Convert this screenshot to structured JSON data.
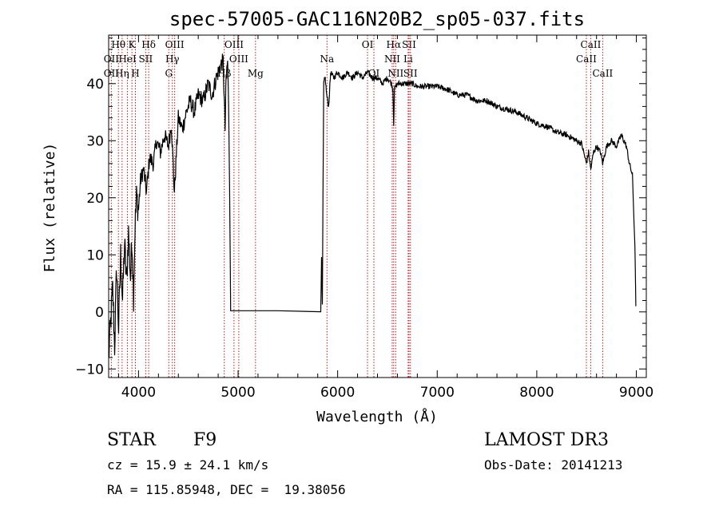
{
  "title": "spec-57005-GAC116N20B2_sp05-037.fits",
  "info": {
    "object_class": "STAR",
    "subclass": "F9",
    "survey": "LAMOST DR3",
    "cz": "cz = 15.9 ± 24.1 km/s",
    "obs_date": "Obs-Date: 20141213",
    "radec": "RA = 115.85948, DEC =  19.38056"
  },
  "chart_data": {
    "type": "line",
    "title": "spec-57005-GAC116N20B2_sp05-037.fits",
    "xlabel": "Wavelength (Å)",
    "ylabel": "Flux (relative)",
    "xlim": [
      3700,
      9100
    ],
    "ylim": [
      -11.5,
      48.5
    ],
    "x_ticks": [
      4000,
      5000,
      6000,
      7000,
      8000,
      9000
    ],
    "y_ticks": [
      -10,
      0,
      10,
      20,
      30,
      40
    ],
    "x_minor_step": 200,
    "y_minor_step": 2,
    "grid": false,
    "colors": {
      "spectrum": "#000000",
      "line_markers": "#b22222"
    },
    "series": [
      {
        "values_xy": [
          [
            3700,
            -8
          ],
          [
            3720,
            -2
          ],
          [
            3740,
            4
          ],
          [
            3760,
            -6
          ],
          [
            3780,
            8
          ],
          [
            3800,
            -3
          ],
          [
            3820,
            10
          ],
          [
            3840,
            2
          ],
          [
            3860,
            12
          ],
          [
            3880,
            5
          ],
          [
            3900,
            14
          ],
          [
            3920,
            6
          ],
          [
            3935,
            13
          ],
          [
            3950,
            3
          ],
          [
            3965,
            15
          ],
          [
            3980,
            20
          ],
          [
            4000,
            18
          ],
          [
            4020,
            23
          ],
          [
            4050,
            25
          ],
          [
            4080,
            21
          ],
          [
            4110,
            27
          ],
          [
            4150,
            26
          ],
          [
            4180,
            30
          ],
          [
            4220,
            28
          ],
          [
            4260,
            31
          ],
          [
            4300,
            29
          ],
          [
            4330,
            33
          ],
          [
            4360,
            21
          ],
          [
            4400,
            34
          ],
          [
            4440,
            32
          ],
          [
            4480,
            35
          ],
          [
            4520,
            37
          ],
          [
            4560,
            35
          ],
          [
            4600,
            38
          ],
          [
            4650,
            37
          ],
          [
            4700,
            40
          ],
          [
            4740,
            38
          ],
          [
            4780,
            41
          ],
          [
            4820,
            43
          ],
          [
            4850,
            44
          ],
          [
            4870,
            32
          ],
          [
            4880,
            41
          ],
          [
            4895,
            44
          ],
          [
            4905,
            36
          ],
          [
            4915,
            22
          ],
          [
            4925,
            0.2
          ],
          [
            5400,
            0.2
          ],
          [
            5830,
            0.2
          ],
          [
            5838,
            10
          ],
          [
            5846,
            1
          ],
          [
            5860,
            40
          ],
          [
            5875,
            41
          ],
          [
            5890,
            38
          ],
          [
            5910,
            36
          ],
          [
            5930,
            42
          ],
          [
            5960,
            41
          ],
          [
            6000,
            42
          ],
          [
            6050,
            41
          ],
          [
            6100,
            42
          ],
          [
            6150,
            41
          ],
          [
            6200,
            42
          ],
          [
            6250,
            41
          ],
          [
            6300,
            42
          ],
          [
            6350,
            41
          ],
          [
            6400,
            41
          ],
          [
            6450,
            40
          ],
          [
            6500,
            41
          ],
          [
            6540,
            40
          ],
          [
            6555,
            39
          ],
          [
            6563,
            33
          ],
          [
            6570,
            39
          ],
          [
            6600,
            40
          ],
          [
            6650,
            40
          ],
          [
            6700,
            40
          ],
          [
            6750,
            40
          ],
          [
            6800,
            39.5
          ],
          [
            6900,
            39.5
          ],
          [
            7000,
            39.5
          ],
          [
            7100,
            39
          ],
          [
            7200,
            38
          ],
          [
            7300,
            38
          ],
          [
            7400,
            37
          ],
          [
            7500,
            37
          ],
          [
            7600,
            36
          ],
          [
            7700,
            35.5
          ],
          [
            7800,
            35
          ],
          [
            7900,
            34
          ],
          [
            8000,
            33
          ],
          [
            8100,
            32.5
          ],
          [
            8200,
            31.5
          ],
          [
            8300,
            31
          ],
          [
            8400,
            30
          ],
          [
            8450,
            29.5
          ],
          [
            8498,
            26
          ],
          [
            8520,
            28
          ],
          [
            8542,
            25
          ],
          [
            8570,
            28
          ],
          [
            8600,
            29
          ],
          [
            8640,
            28
          ],
          [
            8662,
            26
          ],
          [
            8700,
            29
          ],
          [
            8750,
            30
          ],
          [
            8800,
            29
          ],
          [
            8850,
            31
          ],
          [
            8900,
            29
          ],
          [
            8930,
            26
          ],
          [
            8960,
            24
          ],
          [
            8985,
            12
          ],
          [
            8995,
            1
          ]
        ]
      }
    ],
    "line_markers": [
      {
        "label": "Hθ",
        "wl": 3798,
        "row": 0
      },
      {
        "label": "K",
        "wl": 3934,
        "row": 0
      },
      {
        "label": "Hδ",
        "wl": 4102,
        "row": 0
      },
      {
        "label": "OIII",
        "wl": 4363,
        "row": 0
      },
      {
        "label": "OIII",
        "wl": 4959,
        "row": 0
      },
      {
        "label": "OI",
        "wl": 6300,
        "row": 0
      },
      {
        "label": "Hα",
        "wl": 6563,
        "row": 0
      },
      {
        "label": "SII",
        "wl": 6717,
        "row": 0
      },
      {
        "label": "CaII",
        "wl": 8542,
        "row": 0
      },
      {
        "label": "OII",
        "wl": 3727,
        "row": 1
      },
      {
        "label": "HeI",
        "wl": 3889,
        "row": 1
      },
      {
        "label": "SII",
        "wl": 4072,
        "row": 1
      },
      {
        "label": "Hγ",
        "wl": 4340,
        "row": 1
      },
      {
        "label": "OIII",
        "wl": 5007,
        "row": 1
      },
      {
        "label": "NII",
        "wl": 6548,
        "row": 1
      },
      {
        "label": "Li",
        "wl": 6708,
        "row": 1
      },
      {
        "label": "CaII",
        "wl": 8498,
        "row": 1
      },
      {
        "label": "OII",
        "wl": 3727,
        "row": 2
      },
      {
        "label": "Hη",
        "wl": 3835,
        "row": 2
      },
      {
        "label": "H",
        "wl": 3969,
        "row": 2
      },
      {
        "label": "G",
        "wl": 4304,
        "row": 2
      },
      {
        "label": "Hβ",
        "wl": 4861,
        "row": 2
      },
      {
        "label": "Mg",
        "wl": 5175,
        "row": 2
      },
      {
        "label": "OI",
        "wl": 6364,
        "row": 2
      },
      {
        "label": "NII",
        "wl": 6583,
        "row": 2
      },
      {
        "label": "SII",
        "wl": 6731,
        "row": 2
      },
      {
        "label": "CaII",
        "wl": 8662,
        "row": 2
      },
      {
        "label": "Na",
        "wl": 5893,
        "row": 1
      }
    ]
  }
}
